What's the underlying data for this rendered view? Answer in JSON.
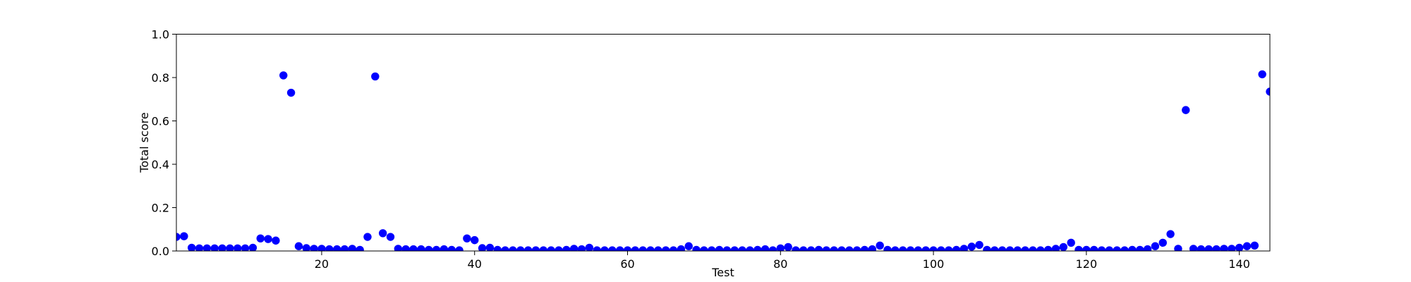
{
  "chart_data": {
    "type": "scatter",
    "x_label": "Test",
    "y_label": "Total score",
    "color": "#0000ff",
    "xlim": [
      1,
      144
    ],
    "ylim": [
      0,
      1
    ],
    "xticks": [
      20,
      40,
      60,
      80,
      100,
      120,
      140
    ],
    "yticks": [
      {
        "value": 0,
        "label": "0.0"
      },
      {
        "value": 0.2,
        "label": "0.2"
      },
      {
        "value": 0.4,
        "label": "0.4"
      },
      {
        "value": 0.6,
        "label": "0.6"
      },
      {
        "value": 0.8,
        "label": "0.8"
      },
      {
        "value": 1,
        "label": "1.0"
      }
    ],
    "x": [
      1,
      2,
      3,
      4,
      5,
      6,
      7,
      8,
      9,
      10,
      11,
      12,
      13,
      14,
      15,
      16,
      17,
      18,
      19,
      20,
      21,
      22,
      23,
      24,
      25,
      26,
      27,
      28,
      29,
      30,
      31,
      32,
      33,
      34,
      35,
      36,
      37,
      38,
      39,
      40,
      41,
      42,
      43,
      44,
      45,
      46,
      47,
      48,
      49,
      50,
      51,
      52,
      53,
      54,
      55,
      56,
      57,
      58,
      59,
      60,
      61,
      62,
      63,
      64,
      65,
      66,
      67,
      68,
      69,
      70,
      71,
      72,
      73,
      74,
      75,
      76,
      77,
      78,
      79,
      80,
      81,
      82,
      83,
      84,
      85,
      86,
      87,
      88,
      89,
      90,
      91,
      92,
      93,
      94,
      95,
      96,
      97,
      98,
      99,
      100,
      101,
      102,
      103,
      104,
      105,
      106,
      107,
      108,
      109,
      110,
      111,
      112,
      113,
      114,
      115,
      116,
      117,
      118,
      119,
      120,
      121,
      122,
      123,
      124,
      125,
      126,
      127,
      128,
      129,
      130,
      131,
      132,
      133,
      134,
      135,
      136,
      137,
      138,
      139,
      140,
      141,
      142,
      143,
      144
    ],
    "values": [
      0.065,
      0.068,
      0.015,
      0.012,
      0.012,
      0.012,
      0.012,
      0.012,
      0.012,
      0.012,
      0.015,
      0.058,
      0.055,
      0.048,
      0.81,
      0.73,
      0.022,
      0.013,
      0.01,
      0.01,
      0.008,
      0.008,
      0.008,
      0.01,
      0.005,
      0.065,
      0.805,
      0.082,
      0.065,
      0.01,
      0.008,
      0.008,
      0.008,
      0.005,
      0.005,
      0.008,
      0.005,
      0.003,
      0.058,
      0.05,
      0.013,
      0.015,
      0.005,
      0.003,
      0.003,
      0.003,
      0.003,
      0.003,
      0.003,
      0.003,
      0.003,
      0.005,
      0.01,
      0.008,
      0.015,
      0.003,
      0.003,
      0.003,
      0.003,
      0.003,
      0.003,
      0.003,
      0.003,
      0.003,
      0.003,
      0.003,
      0.008,
      0.022,
      0.005,
      0.003,
      0.003,
      0.005,
      0.003,
      0.003,
      0.003,
      0.003,
      0.005,
      0.008,
      0.003,
      0.012,
      0.018,
      0.003,
      0.003,
      0.003,
      0.005,
      0.003,
      0.003,
      0.003,
      0.003,
      0.003,
      0.005,
      0.008,
      0.025,
      0.005,
      0.003,
      0.003,
      0.003,
      0.003,
      0.003,
      0.003,
      0.003,
      0.003,
      0.005,
      0.01,
      0.02,
      0.028,
      0.005,
      0.003,
      0.003,
      0.003,
      0.003,
      0.003,
      0.003,
      0.003,
      0.005,
      0.01,
      0.018,
      0.038,
      0.005,
      0.005,
      0.005,
      0.003,
      0.003,
      0.003,
      0.003,
      0.005,
      0.005,
      0.008,
      0.022,
      0.038,
      0.078,
      0.01,
      0.65,
      0.01,
      0.008,
      0.008,
      0.008,
      0.01,
      0.01,
      0.015,
      0.022,
      0.025,
      0.815,
      0.735
    ]
  }
}
